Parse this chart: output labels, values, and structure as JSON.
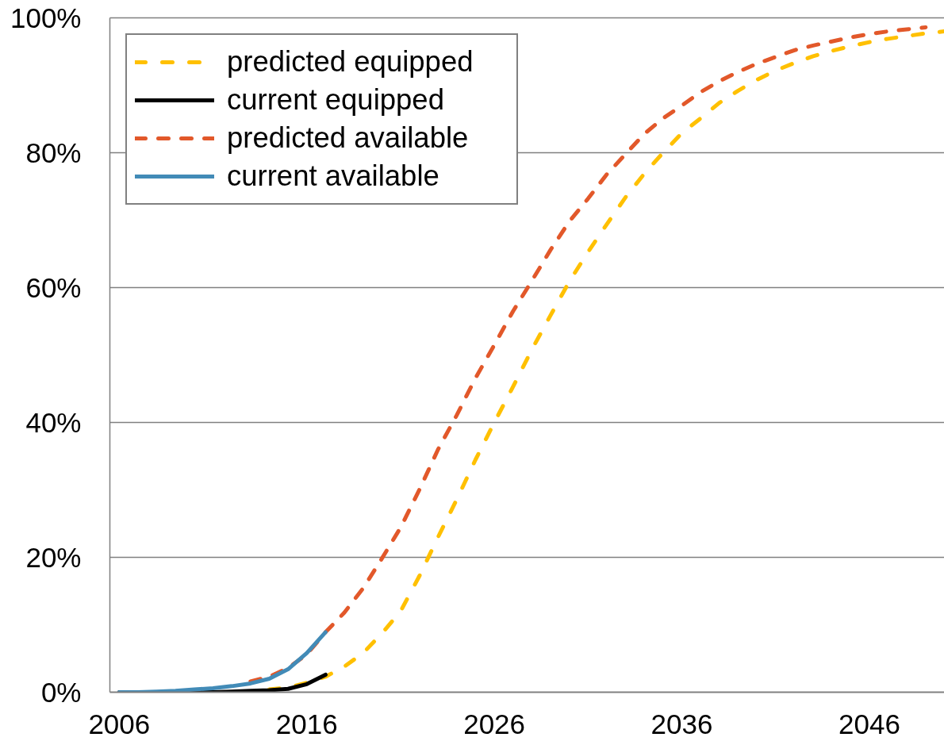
{
  "chart_data": {
    "type": "line",
    "xlim": [
      2005.5,
      2050
    ],
    "xticks": [
      2006,
      2016,
      2026,
      2036,
      2046
    ],
    "ylim": [
      0,
      100
    ],
    "yticks": [
      {
        "value": 0,
        "label": "0%"
      },
      {
        "value": 20,
        "label": "20%"
      },
      {
        "value": 40,
        "label": "40%"
      },
      {
        "value": 60,
        "label": "60%"
      },
      {
        "value": 80,
        "label": "80%"
      },
      {
        "value": 100,
        "label": "100%"
      }
    ],
    "grid": "y",
    "legend": "top left",
    "series": [
      {
        "name": "predicted equipped",
        "color": "#ffc000",
        "line_style": "dashed",
        "x": [
          2014,
          2015,
          2016,
          2017,
          2018,
          2019,
          2020,
          2021,
          2022,
          2023,
          2024,
          2025,
          2026,
          2027,
          2028,
          2029,
          2030,
          2031,
          2032,
          2033,
          2034,
          2035,
          2036,
          2037,
          2038,
          2039,
          2040,
          2041,
          2042,
          2043,
          2044,
          2045,
          2046,
          2047,
          2048,
          2049,
          2050
        ],
        "values": [
          0.4,
          0.7,
          1.4,
          2.3,
          3.8,
          5.8,
          8.7,
          12.0,
          17.2,
          23.0,
          28.6,
          34.5,
          40.0,
          45.3,
          50.8,
          55.9,
          60.9,
          65.3,
          69.4,
          73.4,
          76.9,
          80.0,
          82.9,
          85.1,
          87.4,
          89.2,
          90.8,
          92.2,
          93.3,
          94.3,
          95.1,
          95.8,
          96.4,
          96.9,
          97.3,
          97.7,
          98.0
        ]
      },
      {
        "name": "current equipped",
        "color": "#000000",
        "line_style": "solid",
        "x": [
          2006,
          2007,
          2008,
          2009,
          2010,
          2011,
          2012,
          2013,
          2014,
          2015,
          2016,
          2017
        ],
        "values": [
          0,
          0,
          0,
          0,
          0,
          0,
          0.1,
          0.2,
          0.3,
          0.5,
          1.2,
          2.6
        ]
      },
      {
        "name": "predicted available",
        "color": "#e2582a",
        "line_style": "dashed",
        "x": [
          2013,
          2014,
          2015,
          2016,
          2017,
          2018,
          2019,
          2020,
          2021,
          2022,
          2023,
          2024,
          2025,
          2026,
          2027,
          2028,
          2029,
          2030,
          2031,
          2032,
          2033,
          2034,
          2035,
          2036,
          2037,
          2038,
          2039,
          2040,
          2041,
          2042,
          2043,
          2044,
          2045,
          2046,
          2047,
          2048,
          2049
        ],
        "values": [
          1.6,
          2.3,
          3.6,
          5.6,
          8.9,
          11.8,
          15.4,
          19.8,
          24.4,
          30.0,
          36.0,
          41.1,
          46.6,
          51.5,
          56.5,
          61.0,
          65.6,
          69.8,
          73.2,
          76.8,
          79.8,
          82.8,
          85.1,
          87.0,
          89.0,
          90.6,
          92.0,
          93.2,
          94.2,
          95.2,
          95.9,
          96.5,
          97.1,
          97.6,
          98.0,
          98.3,
          98.6
        ]
      },
      {
        "name": "current available",
        "color": "#428bb7",
        "line_style": "solid",
        "x": [
          2006,
          2007,
          2008,
          2009,
          2010,
          2011,
          2012,
          2013,
          2014,
          2015,
          2016,
          2017
        ],
        "values": [
          0,
          0,
          0.1,
          0.2,
          0.4,
          0.6,
          0.9,
          1.3,
          2.0,
          3.4,
          5.8,
          8.9
        ]
      }
    ]
  }
}
